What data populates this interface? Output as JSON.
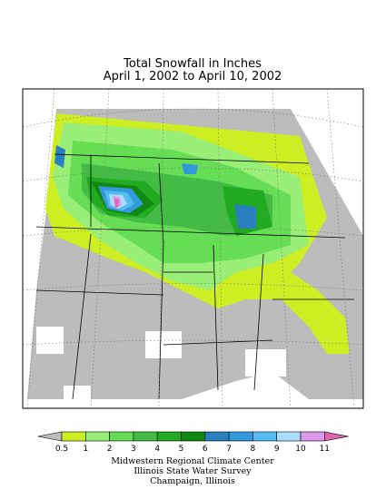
{
  "title": [
    "Total Snowfall in Inches",
    "April 1, 2002 to April 10, 2002"
  ],
  "legend": {
    "labels": [
      0.5,
      1,
      2,
      3,
      4,
      5,
      6,
      7,
      8,
      9,
      10,
      11
    ],
    "below_color": "#bcbcbc",
    "colors": [
      "#ccee22",
      "#99ee77",
      "#66dd55",
      "#44bb44",
      "#22aa22",
      "#118811",
      "#2a7fbf",
      "#3399dd",
      "#55bbf0",
      "#aaddff",
      "#dd99ee"
    ],
    "above_color": "#dd66aa"
  },
  "credits": [
    "Midwestern Regional Climate Center",
    "Illinois State Water Survey",
    "Champaign, Illinois"
  ]
}
